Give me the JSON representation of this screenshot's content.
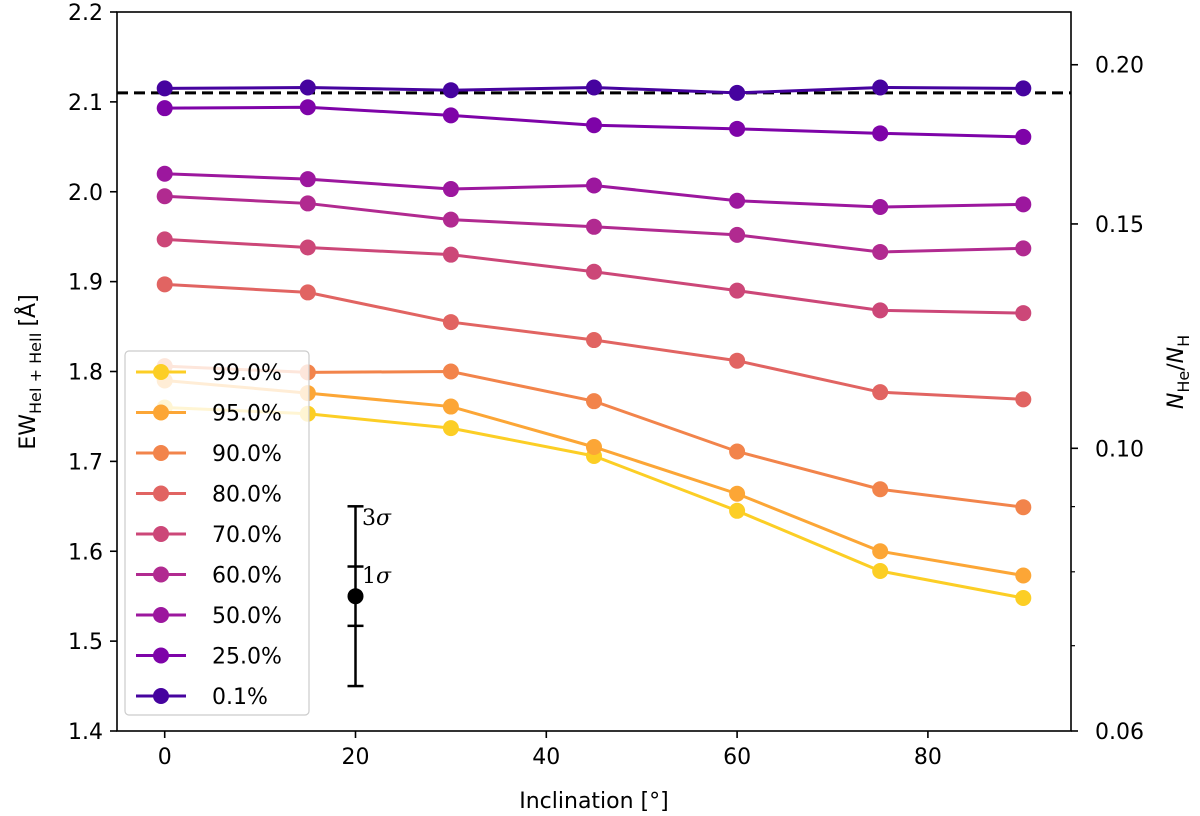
{
  "chart_data": {
    "type": "line",
    "xlabel": "Inclination [°]",
    "ylabel_main": "EW",
    "ylabel_sub": "HeI + HeII",
    "ylabel_unit": "[Å]",
    "y2label": {
      "n1": "N",
      "s1": "He",
      "slash": "/",
      "n2": "N",
      "s2": "H"
    },
    "xlim": [
      -5,
      95
    ],
    "ylim": [
      1.4,
      2.2
    ],
    "y2lim": [
      0.06,
      0.22
    ],
    "x_ticks": [
      0,
      20,
      40,
      60,
      80
    ],
    "x_tick_labels": [
      "0",
      "20",
      "40",
      "60",
      "80"
    ],
    "y_ticks": [
      1.4,
      1.5,
      1.6,
      1.7,
      1.8,
      1.9,
      2.0,
      2.1,
      2.2
    ],
    "y_tick_labels": [
      "1.4",
      "1.5",
      "1.6",
      "1.7",
      "1.8",
      "1.9",
      "2.0",
      "2.1",
      "2.2"
    ],
    "y2_ticks": [
      0.06,
      0.1,
      0.15,
      0.2
    ],
    "y2_tick_labels": [
      "0.06",
      "0.10",
      "0.15",
      "0.20"
    ],
    "x": [
      0,
      15,
      30,
      45,
      60,
      75,
      90
    ],
    "series": [
      {
        "name": "99.0%",
        "color": "#fcce25",
        "values": [
          1.76,
          1.753,
          1.737,
          1.706,
          1.645,
          1.578,
          1.548
        ]
      },
      {
        "name": "95.0%",
        "color": "#fca636",
        "values": [
          1.79,
          1.776,
          1.761,
          1.716,
          1.664,
          1.6,
          1.573
        ]
      },
      {
        "name": "90.0%",
        "color": "#f2844b",
        "values": [
          1.806,
          1.799,
          1.8,
          1.767,
          1.711,
          1.669,
          1.649
        ]
      },
      {
        "name": "80.0%",
        "color": "#e16462",
        "values": [
          1.897,
          1.888,
          1.855,
          1.835,
          1.812,
          1.777,
          1.769
        ]
      },
      {
        "name": "70.0%",
        "color": "#cc4778",
        "values": [
          1.947,
          1.938,
          1.93,
          1.911,
          1.89,
          1.868,
          1.865
        ]
      },
      {
        "name": "60.0%",
        "color": "#b12a90",
        "values": [
          1.995,
          1.987,
          1.969,
          1.961,
          1.952,
          1.933,
          1.937
        ]
      },
      {
        "name": "50.0%",
        "color": "#9c179e",
        "values": [
          2.02,
          2.014,
          2.003,
          2.007,
          1.99,
          1.983,
          1.986
        ]
      },
      {
        "name": "25.0%",
        "color": "#7e03a8",
        "values": [
          2.093,
          2.094,
          2.085,
          2.074,
          2.07,
          2.065,
          2.061
        ]
      },
      {
        "name": "0.1%",
        "color": "#46039f",
        "values": [
          2.115,
          2.116,
          2.113,
          2.116,
          2.11,
          2.116,
          2.115
        ]
      }
    ],
    "reference_line": {
      "y": 2.11,
      "style": "dashed",
      "color": "#000000"
    },
    "error_bar": {
      "x": 20,
      "y": 1.55,
      "one_sigma": [
        1.517,
        1.583
      ],
      "three_sigma": [
        1.45,
        1.65
      ],
      "label_1sigma": {
        "num": "1",
        "sym": "σ"
      },
      "label_3sigma": {
        "num": "3",
        "sym": "σ"
      }
    },
    "legend_position": "lower-left"
  }
}
